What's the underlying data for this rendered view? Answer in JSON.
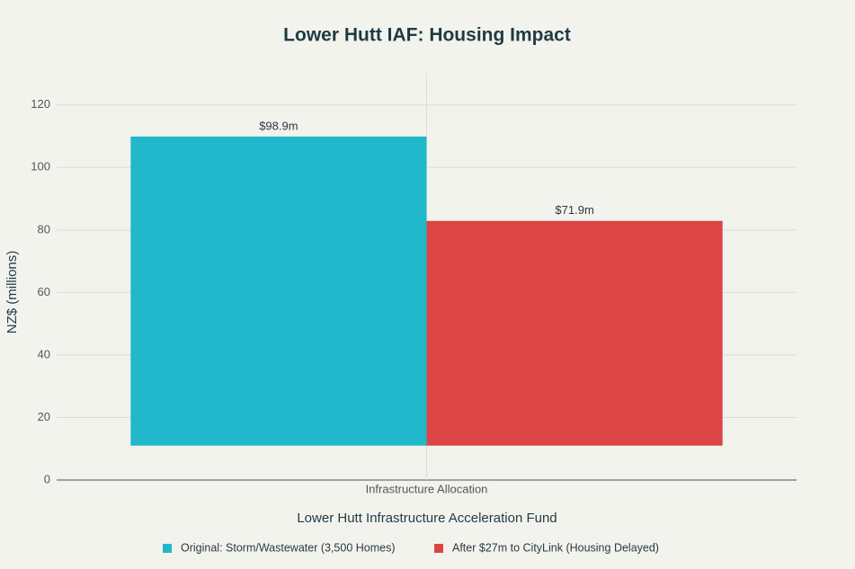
{
  "chart_data": {
    "type": "bar",
    "title": "Lower Hutt IAF: Housing Impact",
    "x_label": "Lower Hutt Infrastructure Acceleration Fund",
    "y_label": "NZ$ (millions)",
    "categories": [
      "Infrastructure Allocation"
    ],
    "base": 11,
    "series": [
      {
        "name": "Original: Storm/Wastewater (3,500 Homes)",
        "color": "#21b8cc",
        "values": [
          98.9
        ],
        "value_labels": [
          "$98.9m"
        ]
      },
      {
        "name": "After $27m to CityLink (Housing Delayed)",
        "color": "#db4545",
        "values": [
          71.9
        ],
        "value_labels": [
          "$71.9m"
        ]
      }
    ],
    "ylim": [
      0,
      130
    ],
    "yticks": [
      0,
      20,
      40,
      60,
      80,
      100,
      120
    ],
    "grid": true,
    "legend": "bottom"
  }
}
